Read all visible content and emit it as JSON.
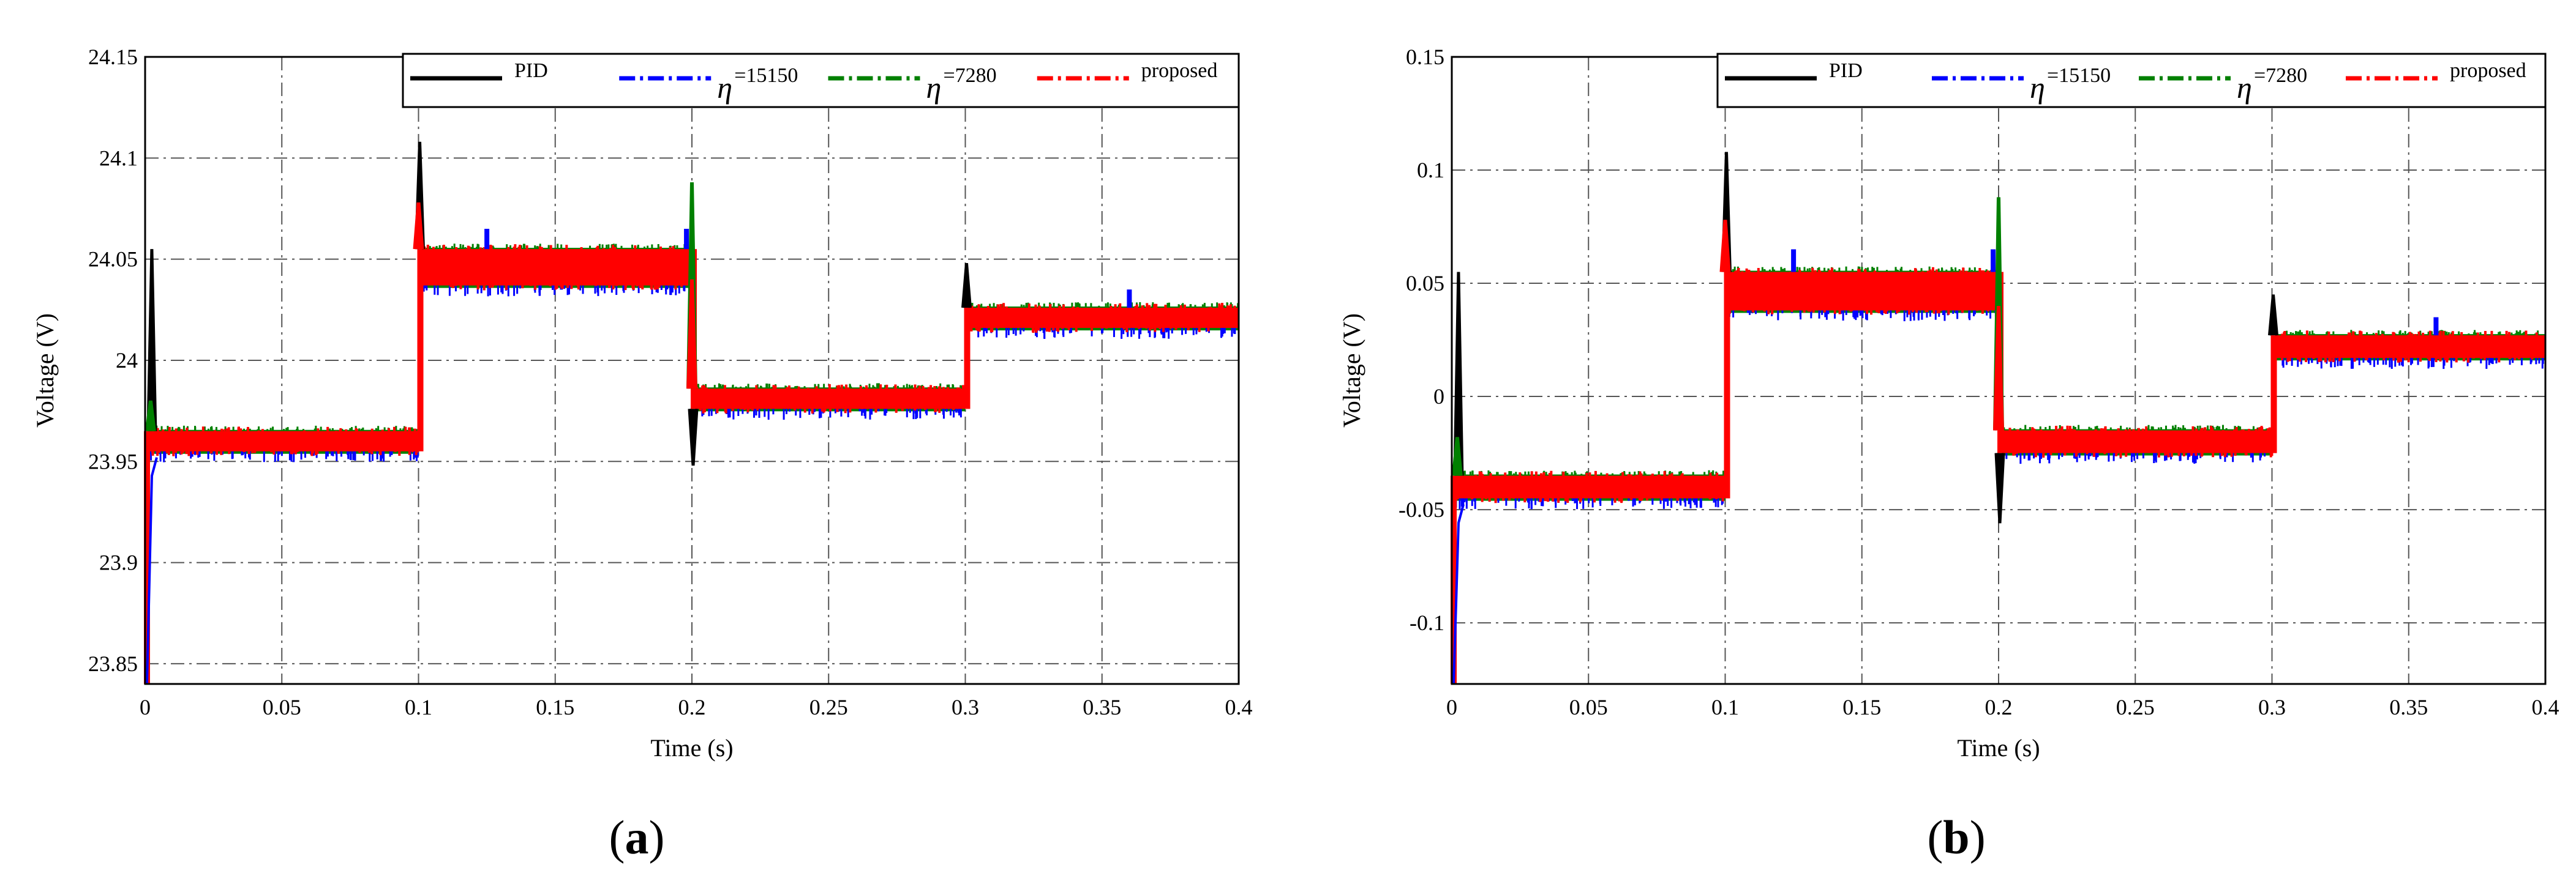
{
  "chart_data": [
    {
      "type": "line",
      "panel_label": "a",
      "xlabel": "Time (s)",
      "ylabel": "Voltage (V)",
      "xlim": [
        0,
        0.4
      ],
      "ylim": [
        23.84,
        24.15
      ],
      "xticks": [
        0,
        0.05,
        0.1,
        0.15,
        0.2,
        0.25,
        0.3,
        0.35,
        0.4
      ],
      "xtick_labels": [
        "0",
        "0.05",
        "0.1",
        "0.15",
        "0.2",
        "0.25",
        "0.3",
        "0.35",
        "0.4"
      ],
      "yticks": [
        23.85,
        23.9,
        23.95,
        24,
        24.05,
        24.1,
        24.15
      ],
      "ytick_labels": [
        "23.85",
        "23.9",
        "23.95",
        "24",
        "24.05",
        "24.1",
        "24.15"
      ],
      "grid": true,
      "legend_position": "top",
      "segments": [
        {
          "t": [
            0,
            0.1
          ],
          "low": 23.955,
          "high": 23.965
        },
        {
          "t": [
            0.1,
            0.2
          ],
          "low": 24.037,
          "high": 24.055
        },
        {
          "t": [
            0.2,
            0.3
          ],
          "low": 23.976,
          "high": 23.986
        },
        {
          "t": [
            0.3,
            0.4
          ],
          "low": 24.016,
          "high": 24.026
        }
      ],
      "series": [
        {
          "name": "PID",
          "color": "#000000",
          "peaks": [
            {
              "t": 0.002,
              "v": 24.055
            },
            {
              "t": 0.1,
              "v": 24.108
            },
            {
              "t": 0.2,
              "v": 23.948
            },
            {
              "t": 0.3,
              "v": 24.048
            }
          ],
          "start_value": 23.84
        },
        {
          "name": "=15150",
          "color": "#0000ff",
          "peaks": [
            {
              "t": 0.125,
              "v": 24.065
            },
            {
              "t": 0.198,
              "v": 24.065
            },
            {
              "t": 0.36,
              "v": 24.035
            }
          ],
          "start_value": 23.84
        },
        {
          "name": "=7280",
          "color": "#008000",
          "peaks": [
            {
              "t": 0.002,
              "v": 23.98
            },
            {
              "t": 0.2,
              "v": 24.088
            }
          ],
          "start_value": 23.84
        },
        {
          "name": "proposed",
          "color": "#ff0000",
          "peaks": [
            {
              "t": 0.1,
              "v": 24.078
            },
            {
              "t": 0.2,
              "v": 24.04
            }
          ],
          "start_value": 23.84
        }
      ]
    },
    {
      "type": "line",
      "panel_label": "b",
      "xlabel": "Time (s)",
      "ylabel": "Voltage (V)",
      "xlim": [
        0,
        0.4
      ],
      "ylim": [
        -0.127,
        0.15
      ],
      "xticks": [
        0,
        0.05,
        0.1,
        0.15,
        0.2,
        0.25,
        0.3,
        0.35,
        0.4
      ],
      "xtick_labels": [
        "0",
        "0.05",
        "0.1",
        "0.15",
        "0.2",
        "0.25",
        "0.3",
        "0.35",
        "0.4"
      ],
      "yticks": [
        -0.1,
        -0.05,
        0,
        0.05,
        0.1,
        0.15
      ],
      "ytick_labels": [
        "-0.1",
        "-0.05",
        "0",
        "0.05",
        "0.1",
        "0.15"
      ],
      "grid": true,
      "legend_position": "top",
      "segments": [
        {
          "t": [
            0,
            0.1
          ],
          "low": -0.045,
          "high": -0.035
        },
        {
          "t": [
            0.1,
            0.2
          ],
          "low": 0.038,
          "high": 0.055
        },
        {
          "t": [
            0.2,
            0.3
          ],
          "low": -0.025,
          "high": -0.015
        },
        {
          "t": [
            0.3,
            0.4
          ],
          "low": 0.017,
          "high": 0.027
        }
      ],
      "series": [
        {
          "name": "PID",
          "color": "#000000",
          "peaks": [
            {
              "t": 0.002,
              "v": 0.055
            },
            {
              "t": 0.1,
              "v": 0.108
            },
            {
              "t": 0.2,
              "v": -0.056
            },
            {
              "t": 0.3,
              "v": 0.045
            }
          ],
          "start_value": -0.127
        },
        {
          "name": "=15150",
          "color": "#0000ff",
          "peaks": [
            {
              "t": 0.125,
              "v": 0.065
            },
            {
              "t": 0.198,
              "v": 0.065
            },
            {
              "t": 0.36,
              "v": 0.035
            }
          ],
          "start_value": -0.127
        },
        {
          "name": "=7280",
          "color": "#008000",
          "peaks": [
            {
              "t": 0.002,
              "v": -0.018
            },
            {
              "t": 0.2,
              "v": 0.088
            }
          ],
          "start_value": -0.127
        },
        {
          "name": "proposed",
          "color": "#ff0000",
          "peaks": [
            {
              "t": 0.1,
              "v": 0.078
            },
            {
              "t": 0.2,
              "v": 0.04
            }
          ],
          "start_value": -0.127
        }
      ]
    }
  ],
  "legend_symbol": "η",
  "captions": {
    "a": {
      "open": "(",
      "letter": "a",
      "close": ")"
    },
    "b": {
      "open": "(",
      "letter": "b",
      "close": ")"
    }
  }
}
